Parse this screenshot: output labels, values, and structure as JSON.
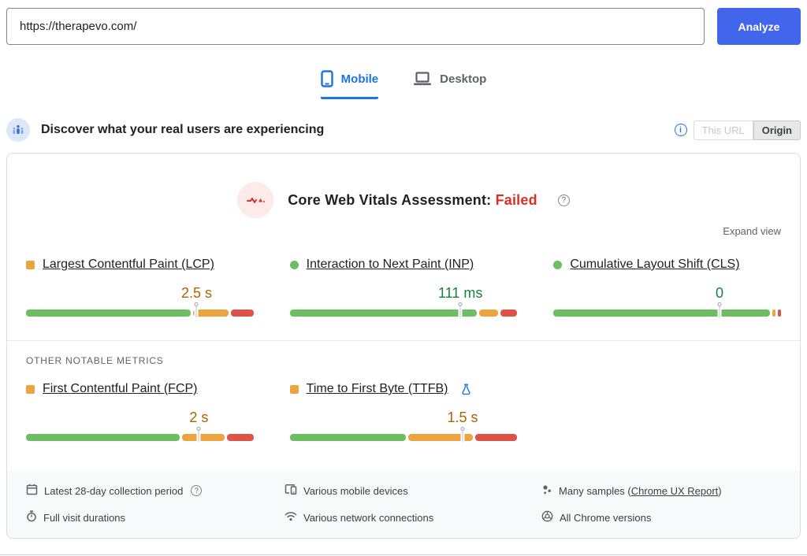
{
  "url_bar": {
    "value": "https://therapevo.com/",
    "analyze_label": "Analyze"
  },
  "device_tabs": [
    {
      "label": "Mobile",
      "active": true
    },
    {
      "label": "Desktop",
      "active": false
    }
  ],
  "field_section": {
    "title": "Discover what your real users are experiencing",
    "this_url_label": "This URL",
    "origin_label": "Origin"
  },
  "assessment": {
    "label": "Core Web Vitals Assessment:",
    "verdict": "Failed",
    "expand_label": "Expand view"
  },
  "core_metrics": [
    {
      "title": "Largest Contentful Paint (LCP)",
      "value": "2.5 s",
      "status": "warn",
      "bar": {
        "green": 74,
        "orange": 16,
        "red": 10
      },
      "marker": 75
    },
    {
      "title": "Interaction to Next Paint (INP)",
      "value": "111 ms",
      "status": "good",
      "bar": {
        "green": 84,
        "orange": 8.5,
        "red": 7.5
      },
      "marker": 75
    },
    {
      "title": "Cumulative Layout Shift (CLS)",
      "value": "0",
      "status": "good",
      "bar": {
        "green": 97,
        "orange": 1.5,
        "red": 1.5
      },
      "marker": 73
    }
  ],
  "other_metrics_heading": "OTHER NOTABLE METRICS",
  "other_metrics": [
    {
      "title": "First Contentful Paint (FCP)",
      "value": "2 s",
      "status": "warn",
      "bar": {
        "green": 69,
        "orange": 19,
        "red": 12
      },
      "marker": 76
    },
    {
      "title": "Time to First Byte (TTFB)",
      "value": "1.5 s",
      "status": "warn",
      "bar": {
        "green": 52,
        "orange": 29,
        "red": 19
      },
      "marker": 76
    }
  ],
  "footer": {
    "items": [
      {
        "icon": "calendar-icon",
        "text": "Latest 28-day collection period"
      },
      {
        "icon": "devices-icon",
        "text": "Various mobile devices"
      },
      {
        "icon": "samples-icon",
        "prefix": "Many samples (",
        "link": "Chrome UX Report",
        "suffix": ")"
      },
      {
        "icon": "stopwatch-icon",
        "text": "Full visit durations"
      },
      {
        "icon": "wifi-icon",
        "text": "Various network connections"
      },
      {
        "icon": "chrome-icon",
        "text": "All Chrome versions"
      }
    ]
  },
  "colors": {
    "bar_green": "#6dbd63",
    "bar_orange": "#eba43e",
    "bar_red": "#dd5348",
    "good_text": "#188038",
    "warn_text": "#b06000",
    "fail_text": "#d93025",
    "tab_blue": "#1a73e8",
    "analyze_blue": "#4266eb"
  }
}
